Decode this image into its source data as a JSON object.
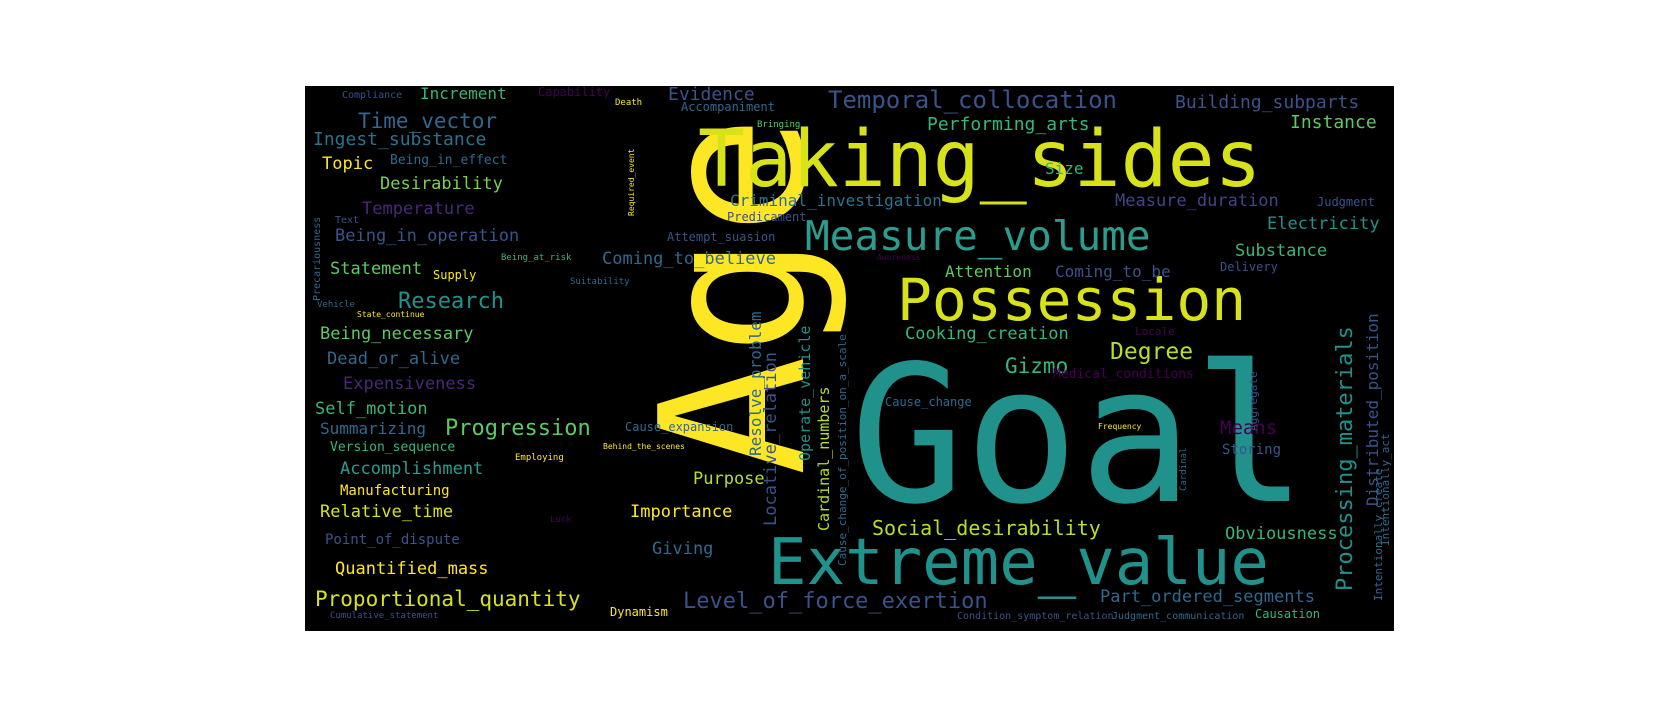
{
  "colors": {
    "background": "#000000",
    "palette": [
      "#fde725",
      "#21918c",
      "#3b528b",
      "#440154",
      "#5ec962",
      "#b5de2b",
      "#31688e",
      "#35b779"
    ]
  },
  "words": [
    {
      "text": "Age",
      "color": "#fde725"
    },
    {
      "text": "Goal",
      "color": "#21918c"
    },
    {
      "text": "Taking_sides",
      "color": "#d8e219"
    },
    {
      "text": "Extreme_value",
      "color": "#21918c"
    },
    {
      "text": "Possession",
      "color": "#d8e219"
    },
    {
      "text": "Measure_volume",
      "color": "#2a9d8f"
    },
    {
      "text": "Temporal_collocation",
      "color": "#3b528b"
    },
    {
      "text": "Time_vector",
      "color": "#31688e"
    },
    {
      "text": "Ingest_substance",
      "color": "#2c728e"
    },
    {
      "text": "Increment",
      "color": "#35b779"
    },
    {
      "text": "Evidence",
      "color": "#3b528b"
    },
    {
      "text": "Building_subparts",
      "color": "#3b528b"
    },
    {
      "text": "Performing_arts",
      "color": "#35b779"
    },
    {
      "text": "Instance",
      "color": "#5ec962"
    },
    {
      "text": "Topic",
      "color": "#fde725"
    },
    {
      "text": "Desirability",
      "color": "#7ad151"
    },
    {
      "text": "Criminal_investigation",
      "color": "#2c728e"
    },
    {
      "text": "Measure_duration",
      "color": "#414487"
    },
    {
      "text": "Temperature",
      "color": "#482878"
    },
    {
      "text": "Electricity",
      "color": "#21918c"
    },
    {
      "text": "Being_in_operation",
      "color": "#3b528b"
    },
    {
      "text": "Coming_to_believe",
      "color": "#31688e"
    },
    {
      "text": "Substance",
      "color": "#35b779"
    },
    {
      "text": "Statement",
      "color": "#5ec962"
    },
    {
      "text": "Attention",
      "color": "#5ec962"
    },
    {
      "text": "Coming_to_be",
      "color": "#3b528b"
    },
    {
      "text": "Research",
      "color": "#21918c"
    },
    {
      "text": "Being_necessary",
      "color": "#5ec962"
    },
    {
      "text": "Cooking_creation",
      "color": "#35b779"
    },
    {
      "text": "Degree",
      "color": "#b5de2b"
    },
    {
      "text": "Dead_or_alive",
      "color": "#31688e"
    },
    {
      "text": "Gizmo",
      "color": "#35b779"
    },
    {
      "text": "Expensiveness",
      "color": "#482878"
    },
    {
      "text": "Self_motion",
      "color": "#35b779"
    },
    {
      "text": "Summarizing",
      "color": "#31688e"
    },
    {
      "text": "Progression",
      "color": "#5ec962"
    },
    {
      "text": "Means",
      "color": "#440154"
    },
    {
      "text": "Accomplishment",
      "color": "#2a9d8f"
    },
    {
      "text": "Purpose",
      "color": "#b5de2b"
    },
    {
      "text": "Relative_time",
      "color": "#d8e219"
    },
    {
      "text": "Importance",
      "color": "#fde725"
    },
    {
      "text": "Social_desirability",
      "color": "#b5de2b"
    },
    {
      "text": "Obviousness",
      "color": "#35b779"
    },
    {
      "text": "Point_of_dispute",
      "color": "#3b528b"
    },
    {
      "text": "Giving",
      "color": "#31688e"
    },
    {
      "text": "Quantified_mass",
      "color": "#fde725"
    },
    {
      "text": "Proportional_quantity",
      "color": "#d8e219"
    },
    {
      "text": "Level_of_force_exertion",
      "color": "#3b528b"
    },
    {
      "text": "Part_ordered_segments",
      "color": "#31688e"
    },
    {
      "text": "Size",
      "color": "#35b779"
    },
    {
      "text": "Storing",
      "color": "#3b528b"
    },
    {
      "text": "Manufacturing",
      "color": "#fde725"
    },
    {
      "text": "Version_sequence",
      "color": "#35b779"
    },
    {
      "text": "Being_in_effect",
      "color": "#31688e"
    },
    {
      "text": "Predicament",
      "color": "#3b528b"
    },
    {
      "text": "Attempt_suasion",
      "color": "#3b528b"
    },
    {
      "text": "Supply",
      "color": "#fde725"
    },
    {
      "text": "Delivery",
      "color": "#3b528b"
    },
    {
      "text": "Judgment",
      "color": "#3b528b"
    },
    {
      "text": "Medical_conditions",
      "color": "#440154"
    },
    {
      "text": "Cause_change",
      "color": "#31688e"
    },
    {
      "text": "Cause_expansion",
      "color": "#31688e"
    },
    {
      "text": "Dynamism",
      "color": "#fde725"
    },
    {
      "text": "Causation",
      "color": "#35b779"
    },
    {
      "text": "Accompaniment",
      "color": "#31688e"
    },
    {
      "text": "Capability",
      "color": "#440154"
    },
    {
      "text": "Compliance",
      "color": "#3b528b"
    },
    {
      "text": "Text",
      "color": "#3b528b"
    },
    {
      "text": "Vehicle",
      "color": "#31688e"
    },
    {
      "text": "Locale",
      "color": "#440154"
    },
    {
      "text": "Death",
      "color": "#fde725"
    },
    {
      "text": "Bringing",
      "color": "#5ec962"
    },
    {
      "text": "Frequency",
      "color": "#fde725"
    },
    {
      "text": "Employing",
      "color": "#fde725"
    },
    {
      "text": "Behind_the_scenes",
      "color": "#fde725"
    },
    {
      "text": "Suitability",
      "color": "#31688e"
    },
    {
      "text": "Being_at_risk",
      "color": "#35b779"
    },
    {
      "text": "State_continue",
      "color": "#fde725"
    },
    {
      "text": "Luck",
      "color": "#440154"
    },
    {
      "text": "Awareness",
      "color": "#440154"
    },
    {
      "text": "Condition_symptom_relation",
      "color": "#3b528b"
    },
    {
      "text": "Judgment_communication",
      "color": "#31688e"
    },
    {
      "text": "Cumulative_statement",
      "color": "#3b528b"
    },
    {
      "text": "Resolve_problem",
      "color": "#31688e"
    },
    {
      "text": "Locative_relation",
      "color": "#3b528b"
    },
    {
      "text": "Operate_vehicle",
      "color": "#21918c"
    },
    {
      "text": "Cardinal_numbers",
      "color": "#b5de2b"
    },
    {
      "text": "Cause_change_of_position_on_a_scale",
      "color": "#31688e"
    },
    {
      "text": "Processing_materials",
      "color": "#21918c"
    },
    {
      "text": "Distributed_position",
      "color": "#3b528b"
    },
    {
      "text": "Intentionally_act",
      "color": "#31688e"
    },
    {
      "text": "Intentionally_create",
      "color": "#31688e"
    },
    {
      "text": "Aggregate",
      "color": "#3b528b"
    },
    {
      "text": "Required_event",
      "color": "#fde725"
    },
    {
      "text": "Precariousness",
      "color": "#31688e"
    },
    {
      "text": "Cardinal",
      "color": "#31688e"
    }
  ]
}
